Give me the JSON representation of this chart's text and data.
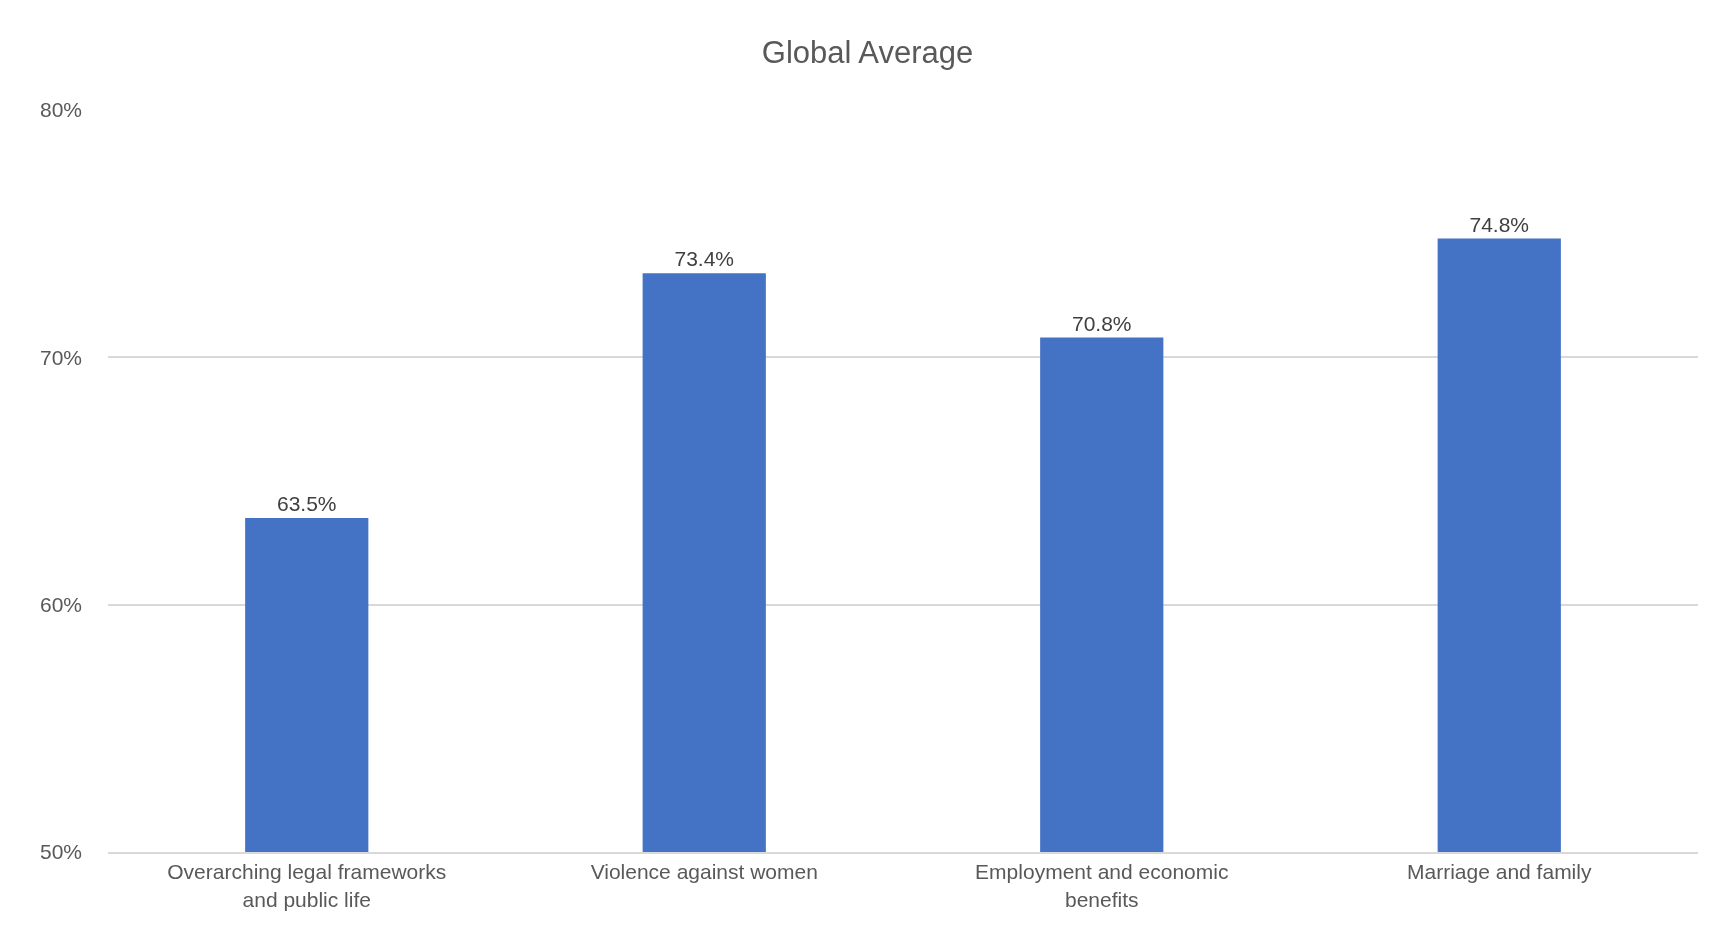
{
  "chart_data": {
    "type": "bar",
    "title": "Global Average",
    "categories": [
      "Overarching legal frameworks and public life",
      "Violence against women",
      "Employment and economic benefits",
      "Marriage and family"
    ],
    "values": [
      63.5,
      73.4,
      70.8,
      74.8
    ],
    "value_labels": [
      "63.5%",
      "73.4%",
      "70.8%",
      "74.8%"
    ],
    "color": "#4472c4",
    "ylim": [
      50,
      80
    ],
    "yticks": [
      {
        "value": 50,
        "label": "50%"
      },
      {
        "value": 60,
        "label": "60%"
      },
      {
        "value": 70,
        "label": "70%"
      },
      {
        "value": 80,
        "label": "80%"
      }
    ],
    "grid": "y",
    "legend": false
  }
}
